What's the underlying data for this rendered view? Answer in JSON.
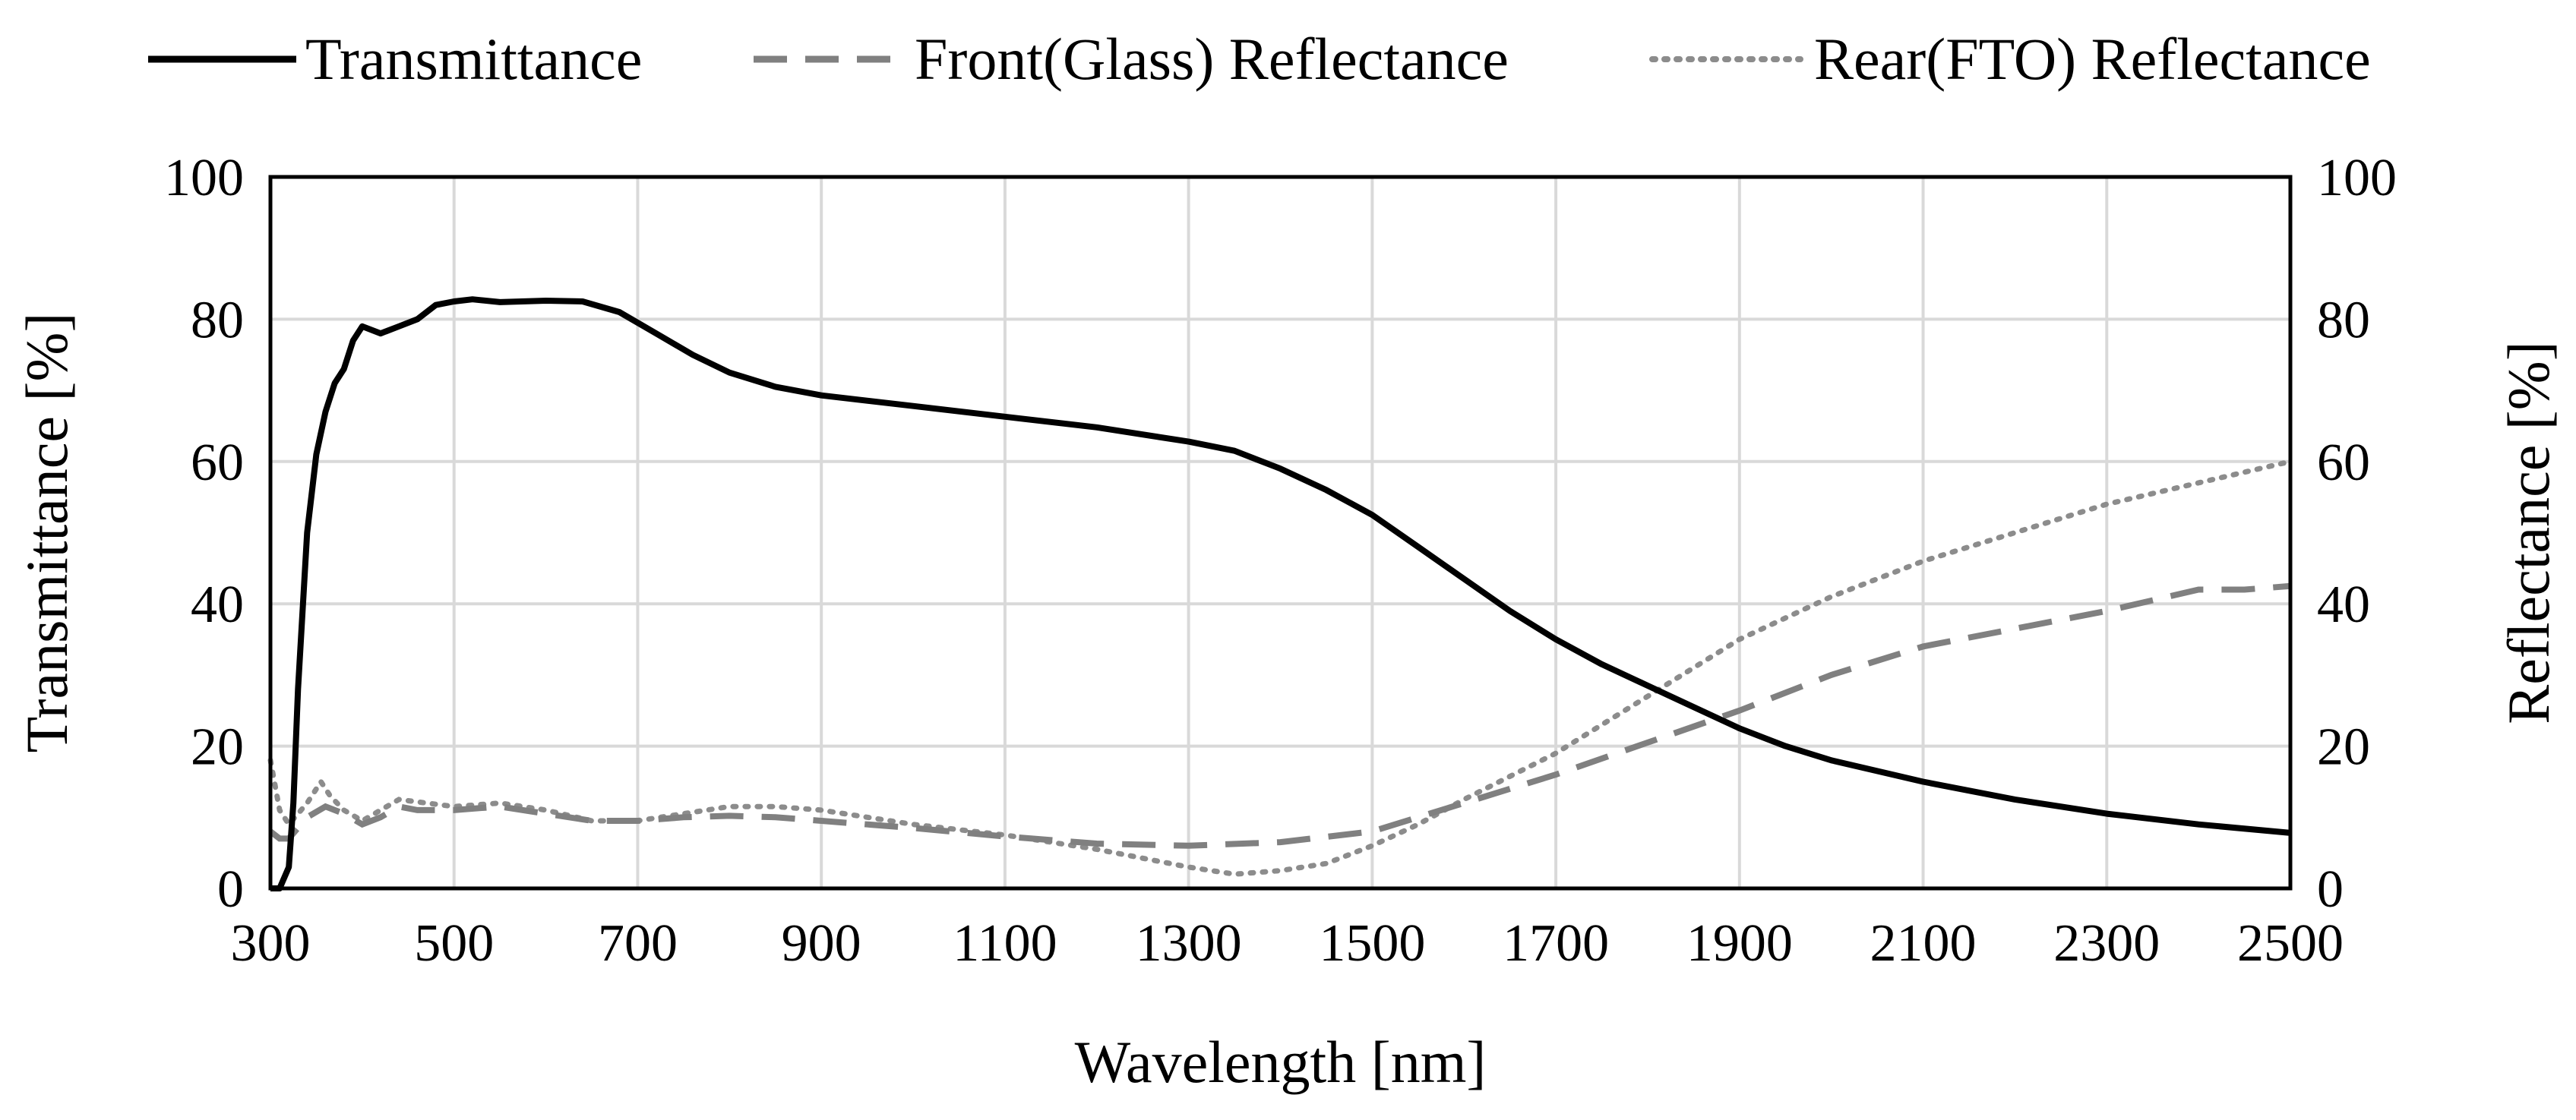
{
  "chart_data": {
    "type": "line",
    "title": "",
    "xlabel": "Wavelength [nm]",
    "ylabel_left": "Transmittance [%]",
    "ylabel_right": "Reflectance [%]",
    "xlim": [
      300,
      2500
    ],
    "ylim_left": [
      0,
      100
    ],
    "ylim_right": [
      0,
      100
    ],
    "grid": true,
    "legend_position": "top",
    "x_ticks": [
      "300",
      "500",
      "700",
      "900",
      "1100",
      "1300",
      "1500",
      "1700",
      "1900",
      "2100",
      "2300",
      "2500"
    ],
    "y_ticks_left": [
      "0",
      "20",
      "40",
      "60",
      "80",
      "100"
    ],
    "y_ticks_right": [
      "0",
      "20",
      "40",
      "60",
      "80",
      "100"
    ],
    "colors": {
      "transmittance": "#000000",
      "front": "#808080",
      "rear": "#8c8c8c",
      "grid": "#d9d9d9"
    },
    "series": [
      {
        "name": "Transmittance",
        "style": "solid",
        "axis": "left",
        "points": [
          [
            300,
            0
          ],
          [
            310,
            0
          ],
          [
            320,
            3
          ],
          [
            325,
            12
          ],
          [
            330,
            28
          ],
          [
            340,
            50
          ],
          [
            350,
            61
          ],
          [
            360,
            67
          ],
          [
            370,
            71
          ],
          [
            380,
            73
          ],
          [
            390,
            77
          ],
          [
            400,
            79
          ],
          [
            420,
            78
          ],
          [
            440,
            79
          ],
          [
            460,
            80
          ],
          [
            480,
            82
          ],
          [
            500,
            82.5
          ],
          [
            520,
            82.8
          ],
          [
            550,
            82.4
          ],
          [
            600,
            82.6
          ],
          [
            640,
            82.5
          ],
          [
            680,
            81
          ],
          [
            720,
            78
          ],
          [
            760,
            75
          ],
          [
            800,
            72.5
          ],
          [
            850,
            70.5
          ],
          [
            900,
            69.3
          ],
          [
            1000,
            67.8
          ],
          [
            1100,
            66.3
          ],
          [
            1200,
            64.8
          ],
          [
            1300,
            62.8
          ],
          [
            1350,
            61.5
          ],
          [
            1400,
            59
          ],
          [
            1450,
            56
          ],
          [
            1500,
            52.5
          ],
          [
            1550,
            48
          ],
          [
            1600,
            43.5
          ],
          [
            1650,
            39
          ],
          [
            1700,
            35
          ],
          [
            1750,
            31.5
          ],
          [
            1800,
            28.5
          ],
          [
            1850,
            25.5
          ],
          [
            1900,
            22.5
          ],
          [
            1950,
            20
          ],
          [
            2000,
            18
          ],
          [
            2100,
            15
          ],
          [
            2200,
            12.5
          ],
          [
            2300,
            10.5
          ],
          [
            2400,
            9
          ],
          [
            2500,
            7.8
          ]
        ]
      },
      {
        "name": "Front(Glass) Reflectance",
        "style": "dashed",
        "axis": "right",
        "points": [
          [
            300,
            8
          ],
          [
            310,
            7
          ],
          [
            320,
            7
          ],
          [
            340,
            10
          ],
          [
            360,
            11.5
          ],
          [
            380,
            10.5
          ],
          [
            400,
            9
          ],
          [
            420,
            10
          ],
          [
            440,
            11.5
          ],
          [
            460,
            11
          ],
          [
            500,
            11
          ],
          [
            550,
            11.5
          ],
          [
            600,
            10.5
          ],
          [
            650,
            9.5
          ],
          [
            700,
            9.5
          ],
          [
            750,
            10
          ],
          [
            800,
            10.2
          ],
          [
            850,
            10
          ],
          [
            900,
            9.5
          ],
          [
            1000,
            8.5
          ],
          [
            1100,
            7.3
          ],
          [
            1200,
            6.3
          ],
          [
            1300,
            6
          ],
          [
            1400,
            6.5
          ],
          [
            1500,
            8
          ],
          [
            1600,
            12
          ],
          [
            1700,
            16
          ],
          [
            1800,
            20.5
          ],
          [
            1900,
            25
          ],
          [
            2000,
            30
          ],
          [
            2100,
            34
          ],
          [
            2200,
            36.5
          ],
          [
            2300,
            39
          ],
          [
            2400,
            42
          ],
          [
            2450,
            42
          ],
          [
            2500,
            42.5
          ]
        ]
      },
      {
        "name": "Rear(FTO) Reflectance",
        "style": "dotted",
        "axis": "right",
        "points": [
          [
            300,
            18
          ],
          [
            310,
            11
          ],
          [
            320,
            9
          ],
          [
            340,
            12
          ],
          [
            355,
            15
          ],
          [
            365,
            13
          ],
          [
            380,
            11
          ],
          [
            400,
            9.5
          ],
          [
            420,
            11
          ],
          [
            440,
            12.5
          ],
          [
            470,
            12
          ],
          [
            500,
            11.5
          ],
          [
            550,
            12
          ],
          [
            600,
            11
          ],
          [
            650,
            9.5
          ],
          [
            700,
            9.5
          ],
          [
            750,
            10.5
          ],
          [
            800,
            11.5
          ],
          [
            850,
            11.5
          ],
          [
            900,
            11
          ],
          [
            1000,
            9
          ],
          [
            1100,
            7.5
          ],
          [
            1200,
            5.5
          ],
          [
            1300,
            3
          ],
          [
            1350,
            2
          ],
          [
            1400,
            2.5
          ],
          [
            1450,
            3.5
          ],
          [
            1500,
            6
          ],
          [
            1550,
            9
          ],
          [
            1600,
            12.5
          ],
          [
            1700,
            19
          ],
          [
            1800,
            27
          ],
          [
            1900,
            35
          ],
          [
            2000,
            41
          ],
          [
            2100,
            46
          ],
          [
            2200,
            50
          ],
          [
            2300,
            54
          ],
          [
            2400,
            57
          ],
          [
            2500,
            60
          ]
        ]
      }
    ]
  }
}
